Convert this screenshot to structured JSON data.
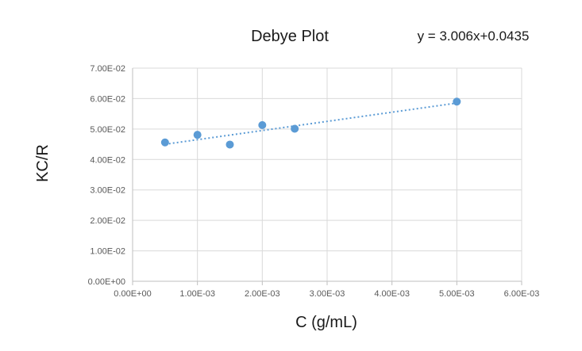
{
  "chart_data": {
    "type": "scatter",
    "title": "Debye Plot",
    "trendline_equation": "y = 3.006x+0.0435",
    "xlabel": "C (g/mL)",
    "ylabel": "KC/R",
    "xlim": [
      0,
      0.006
    ],
    "ylim": [
      0,
      0.07
    ],
    "x_ticks": [
      0,
      0.001,
      0.002,
      0.003,
      0.004,
      0.005,
      0.006
    ],
    "x_tick_labels": [
      "0.00E+00",
      "1.00E-03",
      "2.00E-03",
      "3.00E-03",
      "4.00E-03",
      "5.00E-03",
      "6.00E-03"
    ],
    "y_ticks": [
      0,
      0.01,
      0.02,
      0.03,
      0.04,
      0.05,
      0.06,
      0.07
    ],
    "y_tick_labels": [
      "0.00E+00",
      "1.00E-02",
      "2.00E-02",
      "3.00E-02",
      "4.00E-02",
      "5.00E-02",
      "6.00E-02",
      "7.00E-02"
    ],
    "grid": true,
    "series": [
      {
        "x": [
          0.0005,
          0.001,
          0.0015,
          0.002,
          0.0025,
          0.005
        ],
        "y": [
          0.0456,
          0.0481,
          0.0449,
          0.0513,
          0.0501,
          0.059
        ],
        "color": "#5b9bd5"
      }
    ],
    "trendline": {
      "slope": 3.006,
      "intercept": 0.0435,
      "x_start": 0.0005,
      "x_end": 0.005,
      "color": "#5b9bd5"
    }
  }
}
